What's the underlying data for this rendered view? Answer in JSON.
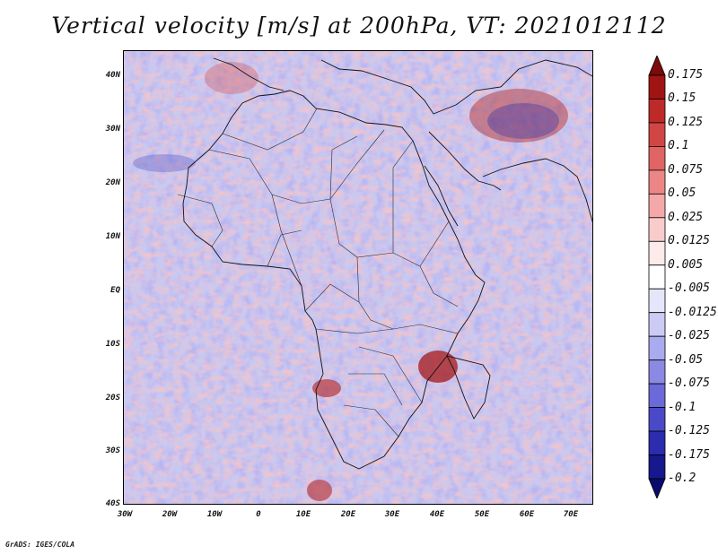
{
  "title": "Vertical velocity [m/s] at 200hPa, VT: 2021012112",
  "credit": "GrADS: IGES/COLA",
  "map": {
    "lat_labels": [
      "40N",
      "30N",
      "20N",
      "10N",
      "EQ",
      "10S",
      "20S",
      "30S",
      "40S"
    ],
    "lon_labels": [
      "30W",
      "20W",
      "10W",
      "0",
      "10E",
      "20E",
      "30E",
      "40E",
      "50E",
      "60E",
      "70E"
    ],
    "region": "Africa and surrounding oceans",
    "lat_range": [
      -40,
      44
    ],
    "lon_range": [
      -30,
      75
    ]
  },
  "legend": {
    "levels": [
      "0.175",
      "0.15",
      "0.125",
      "0.1",
      "0.075",
      "0.05",
      "0.025",
      "0.0125",
      "0.005",
      "-0.005",
      "-0.0125",
      "-0.025",
      "-0.05",
      "-0.075",
      "-0.1",
      "-0.125",
      "-0.175",
      "-0.2"
    ],
    "colors": [
      "#7b0a0a",
      "#a01414",
      "#be2a2a",
      "#d24545",
      "#e06464",
      "#ec8686",
      "#f4a8a8",
      "#f9cccc",
      "#fdeaea",
      "#ffffff",
      "#e6e6fb",
      "#cbcbf5",
      "#aaaaee",
      "#8a8ae4",
      "#6a6ad8",
      "#4a4ac8",
      "#2c2cae",
      "#17178e",
      "#0a0a6c"
    ]
  }
}
